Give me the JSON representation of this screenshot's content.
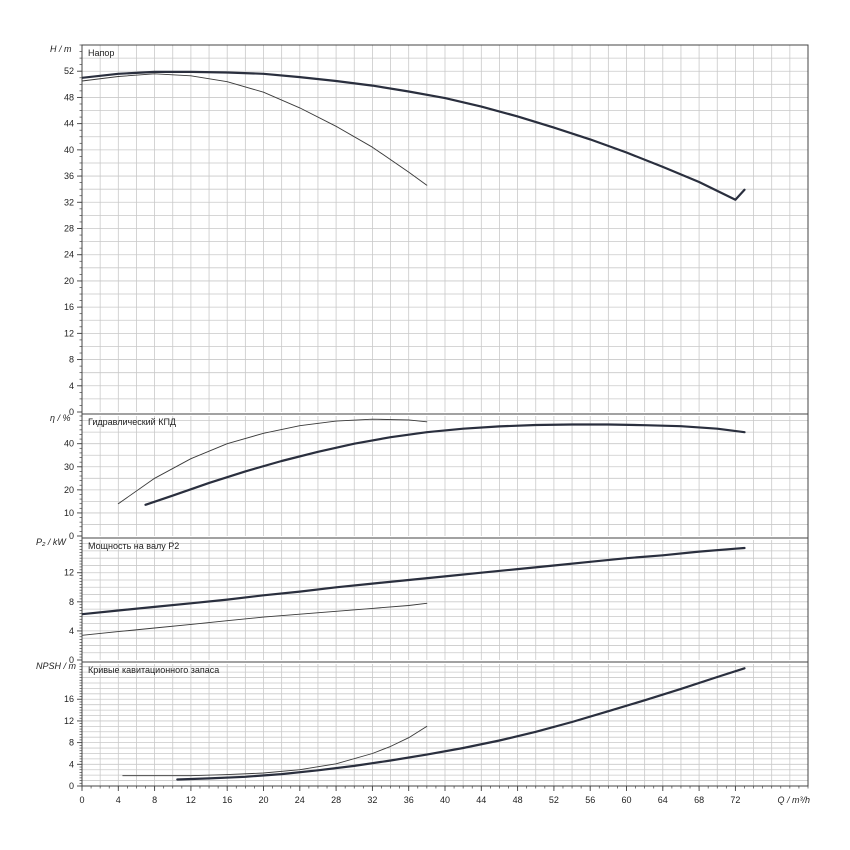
{
  "chart_data": {
    "type": "line",
    "x_axis": {
      "label": "Q / m³/h",
      "range": [
        0,
        80
      ],
      "major_ticks": [
        0,
        4,
        8,
        12,
        16,
        20,
        24,
        28,
        32,
        36,
        40,
        44,
        48,
        52,
        56,
        60,
        64,
        68,
        72
      ],
      "tick_labels": [
        "0",
        "4",
        "8",
        "12",
        "16",
        "20",
        "24",
        "28",
        "32",
        "36",
        "40",
        "44",
        "48",
        "52",
        "56",
        "60",
        "64",
        "68",
        "72"
      ],
      "minor_step": 1,
      "grid_step": 2
    },
    "panels": [
      {
        "id": "head",
        "title": "Напор",
        "ylabel": "H / m",
        "ylim": [
          0,
          56
        ],
        "major_ticks": [
          0,
          4,
          8,
          12,
          16,
          20,
          24,
          28,
          32,
          36,
          40,
          44,
          48,
          52
        ],
        "tick_labels": [
          "0",
          "4",
          "8",
          "12",
          "16",
          "20",
          "24",
          "28",
          "32",
          "36",
          "40",
          "44",
          "48",
          "52"
        ],
        "minor_step": 1,
        "grid_step": 2,
        "series": [
          {
            "role": "main",
            "x": [
              0,
              4,
              8,
              12,
              16,
              20,
              24,
              28,
              32,
              36,
              40,
              44,
              48,
              52,
              56,
              60,
              64,
              68,
              72,
              73
            ],
            "y": [
              51,
              51.6,
              51.9,
              51.9,
              51.8,
              51.6,
              51.1,
              50.5,
              49.8,
              48.9,
              47.9,
              46.6,
              45.1,
              43.4,
              41.6,
              39.6,
              37.4,
              35.1,
              32.4,
              33.9
            ]
          },
          {
            "role": "secondary",
            "x": [
              0,
              4,
              8,
              12,
              16,
              20,
              24,
              28,
              32,
              36,
              38
            ],
            "y": [
              50.5,
              51.2,
              51.6,
              51.3,
              50.4,
              48.8,
              46.4,
              43.6,
              40.4,
              36.6,
              34.6
            ]
          }
        ]
      },
      {
        "id": "efficiency",
        "title": "Гидравлический КПД",
        "ylabel": "η / %",
        "ylim": [
          0,
          52
        ],
        "major_ticks": [
          0,
          10,
          20,
          30,
          40
        ],
        "tick_labels": [
          "0",
          "10",
          "20",
          "30",
          "40"
        ],
        "minor_step": 2,
        "grid_step": 5,
        "series": [
          {
            "role": "main",
            "x": [
              7,
              10,
              14,
              18,
              22,
              26,
              30,
              34,
              38,
              42,
              46,
              50,
              54,
              58,
              62,
              66,
              70,
              73
            ],
            "y": [
              13.5,
              17.5,
              23,
              28,
              32.5,
              36.5,
              40,
              42.8,
              45,
              46.5,
              47.5,
              48.1,
              48.3,
              48.3,
              48,
              47.6,
              46.5,
              45
            ]
          },
          {
            "role": "secondary",
            "x": [
              4,
              8,
              12,
              16,
              20,
              24,
              28,
              32,
              36,
              38
            ],
            "y": [
              14,
              25,
              33.5,
              40,
              44.5,
              47.8,
              49.8,
              50.6,
              50.3,
              49.5
            ]
          }
        ]
      },
      {
        "id": "power",
        "title": "Мощность на валу P2",
        "ylabel": "P₂ / kW",
        "ylim": [
          0,
          16.5
        ],
        "major_ticks": [
          0,
          4,
          8,
          12
        ],
        "tick_labels": [
          "0",
          "4",
          "8",
          "12"
        ],
        "minor_step": 0.4,
        "grid_step": 1,
        "series": [
          {
            "role": "main",
            "x": [
              0,
              4,
              8,
              12,
              16,
              20,
              24,
              28,
              32,
              36,
              40,
              44,
              48,
              52,
              56,
              60,
              64,
              68,
              72,
              73
            ],
            "y": [
              6.3,
              6.8,
              7.3,
              7.8,
              8.3,
              8.9,
              9.4,
              10,
              10.5,
              11,
              11.5,
              12,
              12.5,
              13,
              13.5,
              14,
              14.4,
              14.9,
              15.3,
              15.4
            ]
          },
          {
            "role": "secondary",
            "x": [
              0,
              4,
              8,
              12,
              16,
              20,
              24,
              28,
              32,
              36,
              38
            ],
            "y": [
              3.4,
              3.9,
              4.4,
              4.9,
              5.4,
              5.9,
              6.3,
              6.7,
              7.1,
              7.5,
              7.8
            ]
          }
        ]
      },
      {
        "id": "npsh",
        "title": "Кривые кавитационного запаса",
        "ylabel": "NPSH / m",
        "ylim": [
          0,
          22.5
        ],
        "major_ticks": [
          0,
          4,
          8,
          12,
          16
        ],
        "tick_labels": [
          "0",
          "4",
          "8",
          "12",
          "16"
        ],
        "minor_step": 0.5,
        "grid_step": 1,
        "series": [
          {
            "role": "main",
            "x": [
              10.5,
              14,
              18,
              22,
              26,
              30,
              34,
              38,
              42,
              46,
              50,
              54,
              58,
              62,
              66,
              70,
              73
            ],
            "y": [
              1.2,
              1.4,
              1.7,
              2.2,
              2.9,
              3.7,
              4.7,
              5.8,
              7,
              8.4,
              10,
              11.8,
              13.8,
              15.8,
              17.9,
              20.1,
              21.7
            ]
          },
          {
            "role": "secondary",
            "x": [
              4.5,
              8,
              12,
              16,
              20,
              24,
              28,
              32,
              34,
              36,
              38
            ],
            "y": [
              1.9,
              1.9,
              1.9,
              2.1,
              2.4,
              3,
              4.1,
              6,
              7.3,
              8.9,
              11
            ]
          }
        ]
      }
    ]
  }
}
